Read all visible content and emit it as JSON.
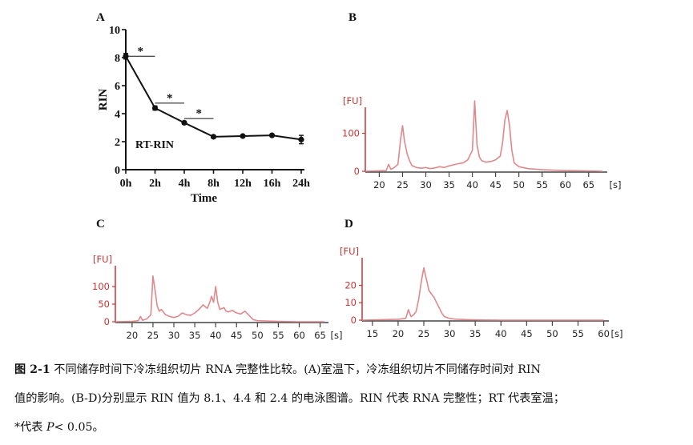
{
  "panels": {
    "a": "A",
    "b": "B",
    "c": "C",
    "d": "D"
  },
  "colors": {
    "ink": "#111111",
    "trace": "#e0888c",
    "axis_red": "#cc3333",
    "tick": "#444444"
  },
  "chart_data": [
    {
      "id": "A",
      "type": "line",
      "title": "",
      "annotation": "RT-RIN",
      "xlabel": "Time",
      "ylabel": "RIN",
      "categories": [
        "0h",
        "2h",
        "4h",
        "8h",
        "12h",
        "16h",
        "24h"
      ],
      "series": [
        {
          "name": "RT-RIN",
          "values": [
            8.1,
            4.4,
            3.35,
            2.35,
            2.4,
            2.45,
            2.15
          ],
          "errors": [
            0.2,
            0.15,
            0.1,
            0.1,
            0.08,
            0.08,
            0.3
          ]
        }
      ],
      "ylim": [
        0,
        10
      ],
      "yticks": [
        0,
        2,
        4,
        6,
        8,
        10
      ],
      "significance": [
        {
          "from": 0,
          "to": 1,
          "y": 8.1,
          "label": "*"
        },
        {
          "from": 1,
          "to": 2,
          "y": 4.75,
          "label": "*"
        },
        {
          "from": 2,
          "to": 3,
          "y": 3.65,
          "label": "*"
        }
      ]
    },
    {
      "id": "B",
      "type": "line",
      "ylabel": "[FU]",
      "xlabel": "[s]",
      "xlim": [
        17,
        69
      ],
      "xticks": [
        20,
        25,
        30,
        35,
        40,
        45,
        50,
        55,
        60,
        65
      ],
      "ylim": [
        0,
        160
      ],
      "yticks": [
        0,
        100
      ],
      "x": [
        17,
        21.5,
        22,
        22.5,
        23,
        24,
        24.6,
        25,
        25.4,
        26,
        26.5,
        27,
        28,
        29,
        30,
        31,
        32,
        33,
        34,
        35,
        36,
        37,
        38,
        39,
        40,
        40.5,
        41,
        41.5,
        42,
        43,
        44,
        45,
        46,
        46.5,
        47,
        47.5,
        48,
        48.5,
        49,
        50,
        52,
        55,
        60,
        65,
        68
      ],
      "y": [
        0,
        2,
        18,
        5,
        8,
        18,
        85,
        120,
        80,
        45,
        28,
        15,
        10,
        8,
        10,
        7,
        9,
        12,
        10,
        14,
        17,
        20,
        22,
        30,
        55,
        185,
        70,
        38,
        28,
        24,
        26,
        30,
        40,
        75,
        135,
        160,
        120,
        55,
        22,
        12,
        7,
        4,
        2,
        1,
        0
      ]
    },
    {
      "id": "C",
      "type": "line",
      "ylabel": "[FU]",
      "xlabel": "[s]",
      "xlim": [
        16,
        67
      ],
      "xticks": [
        20,
        25,
        30,
        35,
        40,
        45,
        50,
        55,
        60,
        65
      ],
      "ylim": [
        0,
        150
      ],
      "yticks": [
        0,
        50,
        100
      ],
      "x": [
        16,
        20,
        21.5,
        22,
        22.5,
        23.5,
        24.5,
        25,
        25.5,
        26,
        26.5,
        27,
        28,
        29,
        30,
        31,
        32,
        33,
        34,
        35,
        36,
        37,
        38,
        38.5,
        39,
        39.5,
        40,
        40.5,
        41,
        42,
        42.5,
        43,
        44,
        45,
        46,
        47,
        48,
        49,
        50,
        52,
        55,
        60,
        66
      ],
      "y": [
        0,
        1,
        3,
        15,
        4,
        8,
        20,
        130,
        90,
        45,
        30,
        35,
        20,
        15,
        12,
        15,
        25,
        20,
        18,
        25,
        35,
        48,
        38,
        52,
        72,
        55,
        100,
        55,
        35,
        40,
        30,
        28,
        32,
        25,
        22,
        30,
        18,
        6,
        3,
        2,
        1,
        0,
        0
      ]
    },
    {
      "id": "D",
      "type": "line",
      "ylabel": "[FU]",
      "xlabel": "[s]",
      "xlim": [
        13,
        61
      ],
      "xticks": [
        15,
        20,
        25,
        30,
        35,
        40,
        45,
        50,
        55,
        60
      ],
      "ylim": [
        0,
        34
      ],
      "yticks": [
        0,
        10,
        20
      ],
      "x": [
        13,
        20,
        21.5,
        22,
        22.5,
        23,
        23.5,
        24,
        24.5,
        25,
        25.3,
        25.7,
        26,
        26.5,
        27,
        27.5,
        28,
        28.5,
        29,
        30,
        31,
        33,
        36,
        40,
        50,
        60
      ],
      "y": [
        0,
        0.5,
        1,
        6,
        2,
        3,
        5,
        12,
        22,
        30,
        26,
        21,
        17,
        15,
        13,
        10,
        7,
        4,
        2,
        1,
        0.6,
        0.3,
        0.1,
        0,
        0,
        0
      ]
    }
  ],
  "caption": {
    "label": "图  2-1",
    "line1": "不同储存时间下冷冻组织切片 RNA 完整性比较。(A)室温下，冷冻组织切片不同储存时间对 RIN",
    "line2": "值的影响。(B-D)分别显示 RIN 值为 8.1、4.4 和 2.4 的电泳图谱。RIN 代表 RNA 完整性；RT 代表室温；",
    "line3_pre": "*代表 ",
    "line3_var": "P",
    "line3_post": "< 0.05。"
  }
}
